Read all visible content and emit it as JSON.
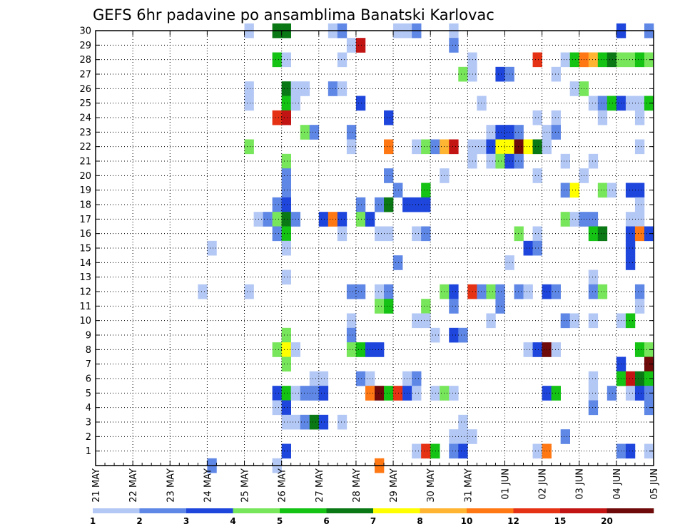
{
  "chart_data": {
    "type": "heatmap",
    "title": "GEFS 6hr padavine po ansamblima Banatski Karlovac",
    "x_tick_labels": [
      "21 MAY",
      "22 MAY",
      "23 MAY",
      "24 MAY",
      "25 MAY",
      "26 MAY",
      "27 MAY",
      "28 MAY",
      "29 MAY",
      "30 MAY",
      "31 MAY",
      "01 JUN",
      "02 JUN",
      "03 JUN",
      "04 JUN",
      "05 JUN"
    ],
    "y_tick_labels": [
      "1",
      "2",
      "3",
      "4",
      "5",
      "6",
      "7",
      "8",
      "9",
      "10",
      "11",
      "12",
      "13",
      "14",
      "15",
      "16",
      "17",
      "18",
      "19",
      "20",
      "21",
      "22",
      "23",
      "24",
      "25",
      "26",
      "27",
      "28",
      "29",
      "30"
    ],
    "y_range": [
      0,
      30
    ],
    "x_range_steps": [
      0,
      60
    ],
    "steps_per_day": 4,
    "grid": true,
    "colorbar": {
      "labels": [
        "1",
        "2",
        "3",
        "4",
        "5",
        "6",
        "7",
        "8",
        "10",
        "12",
        "15",
        "20"
      ],
      "colors": [
        "#b4c8f5",
        "#5f87e6",
        "#1e46dc",
        "#78e65a",
        "#14c314",
        "#0a7814",
        "#ffff00",
        "#ffb432",
        "#ff7814",
        "#e63214",
        "#c31414",
        "#6e0a0a"
      ]
    },
    "cells": [
      [
        30,
        16,
        1
      ],
      [
        30,
        19,
        6
      ],
      [
        30,
        20,
        6
      ],
      [
        30,
        25,
        1
      ],
      [
        30,
        26,
        2
      ],
      [
        30,
        32,
        1
      ],
      [
        30,
        33,
        1
      ],
      [
        30,
        34,
        2
      ],
      [
        30,
        38,
        1
      ],
      [
        30,
        56,
        3
      ],
      [
        30,
        59,
        2
      ],
      [
        29,
        27,
        1
      ],
      [
        29,
        28,
        11
      ],
      [
        29,
        38,
        2
      ],
      [
        28,
        19,
        5
      ],
      [
        28,
        20,
        1
      ],
      [
        28,
        26,
        1
      ],
      [
        28,
        40,
        1
      ],
      [
        28,
        47,
        10
      ],
      [
        28,
        50,
        1
      ],
      [
        28,
        51,
        5
      ],
      [
        28,
        52,
        9
      ],
      [
        28,
        53,
        8
      ],
      [
        28,
        54,
        5
      ],
      [
        28,
        55,
        6
      ],
      [
        28,
        56,
        4
      ],
      [
        28,
        57,
        4
      ],
      [
        28,
        58,
        5
      ],
      [
        28,
        59,
        4
      ],
      [
        27,
        39,
        4
      ],
      [
        27,
        40,
        1
      ],
      [
        27,
        43,
        3
      ],
      [
        27,
        44,
        2
      ],
      [
        27,
        49,
        1
      ],
      [
        26,
        16,
        1
      ],
      [
        26,
        20,
        6
      ],
      [
        26,
        21,
        1
      ],
      [
        26,
        22,
        1
      ],
      [
        26,
        25,
        2
      ],
      [
        26,
        26,
        1
      ],
      [
        26,
        51,
        1
      ],
      [
        26,
        52,
        4
      ],
      [
        25,
        16,
        1
      ],
      [
        25,
        20,
        5
      ],
      [
        25,
        21,
        1
      ],
      [
        25,
        28,
        3
      ],
      [
        25,
        41,
        1
      ],
      [
        25,
        53,
        1
      ],
      [
        25,
        54,
        2
      ],
      [
        25,
        55,
        5
      ],
      [
        25,
        56,
        3
      ],
      [
        25,
        57,
        1
      ],
      [
        25,
        58,
        1
      ],
      [
        25,
        59,
        5
      ],
      [
        24,
        19,
        10
      ],
      [
        24,
        20,
        11
      ],
      [
        24,
        31,
        3
      ],
      [
        24,
        47,
        1
      ],
      [
        24,
        49,
        1
      ],
      [
        24,
        54,
        1
      ],
      [
        24,
        58,
        1
      ],
      [
        23,
        22,
        4
      ],
      [
        23,
        23,
        2
      ],
      [
        23,
        27,
        2
      ],
      [
        23,
        42,
        1
      ],
      [
        23,
        43,
        3
      ],
      [
        23,
        44,
        3
      ],
      [
        23,
        45,
        2
      ],
      [
        23,
        48,
        1
      ],
      [
        23,
        49,
        2
      ],
      [
        22,
        16,
        4
      ],
      [
        22,
        27,
        1
      ],
      [
        22,
        31,
        9
      ],
      [
        22,
        34,
        1
      ],
      [
        22,
        35,
        4
      ],
      [
        22,
        36,
        2
      ],
      [
        22,
        37,
        8
      ],
      [
        22,
        38,
        11
      ],
      [
        22,
        40,
        1
      ],
      [
        22,
        41,
        1
      ],
      [
        22,
        42,
        3
      ],
      [
        22,
        43,
        7
      ],
      [
        22,
        44,
        7
      ],
      [
        22,
        45,
        12
      ],
      [
        22,
        46,
        7
      ],
      [
        22,
        47,
        6
      ],
      [
        22,
        48,
        1
      ],
      [
        22,
        58,
        1
      ],
      [
        21,
        20,
        4
      ],
      [
        21,
        40,
        1
      ],
      [
        21,
        42,
        1
      ],
      [
        21,
        43,
        4
      ],
      [
        21,
        44,
        3
      ],
      [
        21,
        45,
        2
      ],
      [
        21,
        50,
        1
      ],
      [
        21,
        53,
        1
      ],
      [
        20,
        20,
        2
      ],
      [
        20,
        31,
        2
      ],
      [
        20,
        37,
        1
      ],
      [
        20,
        47,
        1
      ],
      [
        20,
        52,
        1
      ],
      [
        19,
        20,
        2
      ],
      [
        19,
        32,
        2
      ],
      [
        19,
        35,
        5
      ],
      [
        19,
        50,
        2
      ],
      [
        19,
        51,
        7
      ],
      [
        19,
        54,
        4
      ],
      [
        19,
        55,
        1
      ],
      [
        19,
        57,
        3
      ],
      [
        19,
        58,
        3
      ],
      [
        18,
        19,
        2
      ],
      [
        18,
        20,
        3
      ],
      [
        18,
        28,
        2
      ],
      [
        18,
        30,
        2
      ],
      [
        18,
        31,
        6
      ],
      [
        18,
        33,
        3
      ],
      [
        18,
        34,
        3
      ],
      [
        18,
        35,
        3
      ],
      [
        18,
        58,
        1
      ],
      [
        17,
        17,
        1
      ],
      [
        17,
        18,
        2
      ],
      [
        17,
        19,
        4
      ],
      [
        17,
        20,
        6
      ],
      [
        17,
        21,
        2
      ],
      [
        17,
        24,
        3
      ],
      [
        17,
        25,
        9
      ],
      [
        17,
        26,
        3
      ],
      [
        17,
        28,
        4
      ],
      [
        17,
        29,
        3
      ],
      [
        17,
        50,
        4
      ],
      [
        17,
        51,
        1
      ],
      [
        17,
        52,
        2
      ],
      [
        17,
        53,
        2
      ],
      [
        17,
        57,
        1
      ],
      [
        17,
        58,
        1
      ],
      [
        16,
        19,
        2
      ],
      [
        16,
        20,
        5
      ],
      [
        16,
        26,
        1
      ],
      [
        16,
        30,
        1
      ],
      [
        16,
        31,
        1
      ],
      [
        16,
        34,
        1
      ],
      [
        16,
        35,
        2
      ],
      [
        16,
        45,
        4
      ],
      [
        16,
        47,
        1
      ],
      [
        16,
        53,
        5
      ],
      [
        16,
        54,
        6
      ],
      [
        16,
        57,
        3
      ],
      [
        16,
        58,
        9
      ],
      [
        16,
        59,
        3
      ],
      [
        15,
        12,
        1
      ],
      [
        15,
        20,
        1
      ],
      [
        15,
        46,
        3
      ],
      [
        15,
        47,
        2
      ],
      [
        15,
        57,
        3
      ],
      [
        14,
        32,
        2
      ],
      [
        14,
        44,
        1
      ],
      [
        14,
        57,
        3
      ],
      [
        13,
        20,
        1
      ],
      [
        13,
        53,
        1
      ],
      [
        12,
        11,
        1
      ],
      [
        12,
        16,
        1
      ],
      [
        12,
        27,
        2
      ],
      [
        12,
        28,
        2
      ],
      [
        12,
        30,
        1
      ],
      [
        12,
        31,
        2
      ],
      [
        12,
        37,
        4
      ],
      [
        12,
        38,
        3
      ],
      [
        12,
        40,
        10
      ],
      [
        12,
        41,
        2
      ],
      [
        12,
        42,
        4
      ],
      [
        12,
        43,
        2
      ],
      [
        12,
        45,
        2
      ],
      [
        12,
        46,
        1
      ],
      [
        12,
        48,
        3
      ],
      [
        12,
        49,
        2
      ],
      [
        12,
        53,
        2
      ],
      [
        12,
        54,
        4
      ],
      [
        12,
        58,
        2
      ],
      [
        11,
        30,
        4
      ],
      [
        11,
        31,
        5
      ],
      [
        11,
        35,
        4
      ],
      [
        11,
        38,
        2
      ],
      [
        11,
        43,
        2
      ],
      [
        11,
        58,
        1
      ],
      [
        10,
        27,
        1
      ],
      [
        10,
        34,
        1
      ],
      [
        10,
        35,
        1
      ],
      [
        10,
        42,
        1
      ],
      [
        10,
        50,
        2
      ],
      [
        10,
        51,
        1
      ],
      [
        10,
        53,
        1
      ],
      [
        10,
        56,
        1
      ],
      [
        10,
        57,
        5
      ],
      [
        9,
        20,
        4
      ],
      [
        9,
        27,
        2
      ],
      [
        9,
        36,
        1
      ],
      [
        9,
        38,
        3
      ],
      [
        9,
        39,
        2
      ],
      [
        8,
        19,
        4
      ],
      [
        8,
        20,
        7
      ],
      [
        8,
        21,
        1
      ],
      [
        8,
        27,
        4
      ],
      [
        8,
        28,
        5
      ],
      [
        8,
        29,
        3
      ],
      [
        8,
        30,
        3
      ],
      [
        8,
        46,
        1
      ],
      [
        8,
        47,
        3
      ],
      [
        8,
        48,
        12
      ],
      [
        8,
        49,
        1
      ],
      [
        8,
        58,
        5
      ],
      [
        8,
        59,
        4
      ],
      [
        7,
        20,
        4
      ],
      [
        7,
        56,
        3
      ],
      [
        7,
        59,
        12
      ],
      [
        6,
        23,
        1
      ],
      [
        6,
        24,
        1
      ],
      [
        6,
        28,
        2
      ],
      [
        6,
        29,
        1
      ],
      [
        6,
        33,
        1
      ],
      [
        6,
        34,
        2
      ],
      [
        6,
        53,
        1
      ],
      [
        6,
        56,
        5
      ],
      [
        6,
        57,
        11
      ],
      [
        6,
        58,
        6
      ],
      [
        6,
        59,
        5
      ],
      [
        5,
        19,
        3
      ],
      [
        5,
        20,
        5
      ],
      [
        5,
        21,
        1
      ],
      [
        5,
        22,
        2
      ],
      [
        5,
        23,
        2
      ],
      [
        5,
        24,
        3
      ],
      [
        5,
        29,
        9
      ],
      [
        5,
        30,
        12
      ],
      [
        5,
        31,
        5
      ],
      [
        5,
        32,
        10
      ],
      [
        5,
        33,
        3
      ],
      [
        5,
        34,
        1
      ],
      [
        5,
        36,
        1
      ],
      [
        5,
        37,
        4
      ],
      [
        5,
        38,
        1
      ],
      [
        5,
        48,
        3
      ],
      [
        5,
        49,
        5
      ],
      [
        5,
        53,
        1
      ],
      [
        5,
        55,
        2
      ],
      [
        5,
        57,
        1
      ],
      [
        5,
        58,
        3
      ],
      [
        5,
        59,
        2
      ],
      [
        4,
        19,
        1
      ],
      [
        4,
        20,
        3
      ],
      [
        4,
        53,
        2
      ],
      [
        4,
        59,
        2
      ],
      [
        3,
        20,
        1
      ],
      [
        3,
        21,
        1
      ],
      [
        3,
        22,
        2
      ],
      [
        3,
        23,
        6
      ],
      [
        3,
        24,
        3
      ],
      [
        3,
        26,
        1
      ],
      [
        3,
        39,
        1
      ],
      [
        2,
        38,
        1
      ],
      [
        2,
        39,
        1
      ],
      [
        2,
        40,
        1
      ],
      [
        2,
        50,
        2
      ],
      [
        1,
        20,
        3
      ],
      [
        1,
        34,
        1
      ],
      [
        1,
        35,
        10
      ],
      [
        1,
        36,
        5
      ],
      [
        1,
        38,
        2
      ],
      [
        1,
        39,
        3
      ],
      [
        1,
        47,
        1
      ],
      [
        1,
        48,
        9
      ],
      [
        1,
        56,
        2
      ],
      [
        1,
        57,
        3
      ],
      [
        1,
        59,
        1
      ],
      [
        0,
        12,
        2
      ],
      [
        0,
        19,
        1
      ],
      [
        0,
        30,
        9
      ]
    ]
  }
}
